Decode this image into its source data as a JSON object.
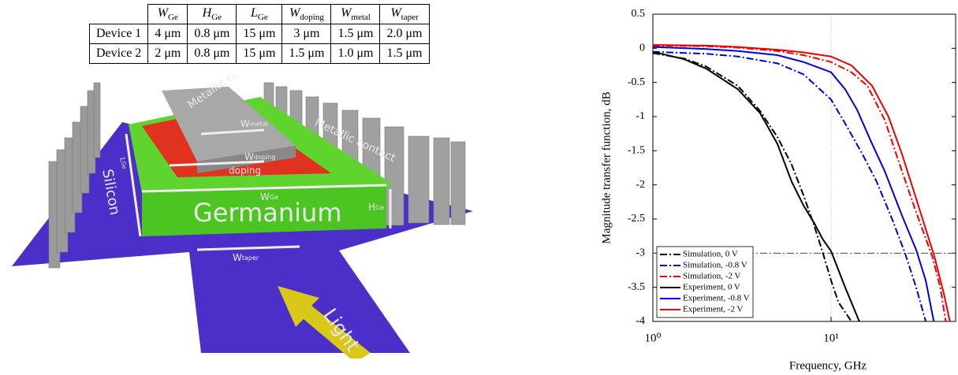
{
  "table": {
    "header": [
      {
        "main": "W",
        "sub": "Ge"
      },
      {
        "main": "H",
        "sub": "Ge"
      },
      {
        "main": "L",
        "sub": "Ge"
      },
      {
        "main": "W",
        "sub": "doping"
      },
      {
        "main": "W",
        "sub": "metal"
      },
      {
        "main": "W",
        "sub": "taper"
      }
    ],
    "rows": [
      [
        "Device 1",
        "4 μm",
        "0.8 μm",
        "15 μm",
        "3 μm",
        "1.5 μm",
        "2.0 μm"
      ],
      [
        "Device 2",
        "2 μm",
        "0.8 μm",
        "15 μm",
        "1.5 μm",
        "1.0 μm",
        "1.5 μm"
      ]
    ]
  },
  "diagram": {
    "labels": {
      "metallic_contact_top": "Metallic contact",
      "metallic_contact_right": "Metallic contact",
      "w_metal": {
        "main": "W",
        "sub": "metal"
      },
      "w_doping": {
        "main": "W",
        "sub": "doping"
      },
      "doping": "doping",
      "silicon": "Silicon",
      "l_ge": {
        "main": "L",
        "sub": "Ge"
      },
      "w_ge": {
        "main": "W",
        "sub": "Ge"
      },
      "germanium": "Germanium",
      "h_ge": {
        "main": "H",
        "sub": "Ge"
      },
      "w_taper": {
        "main": "W",
        "sub": "taper"
      },
      "light": "Light"
    }
  },
  "chart_data": {
    "type": "line",
    "xlabel": "Frequency, GHz",
    "ylabel": "Magnitude transfer function, dB",
    "xscale": "log",
    "xlim": [
      1,
      50
    ],
    "xticks": [
      {
        "value": 1,
        "label": "10⁰"
      },
      {
        "value": 10,
        "label": "10¹"
      }
    ],
    "ylim": [
      -4,
      0.5
    ],
    "yticks": [
      0.5,
      0,
      -0.5,
      -1,
      -1.5,
      -2,
      -2.5,
      -3,
      -3.5,
      -4
    ],
    "grid": true,
    "legend": "lower left",
    "reference_line": -3,
    "series": [
      {
        "name": "Simulation, 0 V",
        "color": "#000000",
        "style": "dashdot",
        "x": [
          1,
          1.5,
          2,
          3,
          4,
          5,
          6,
          7,
          8,
          9,
          10,
          11,
          13
        ],
        "values": [
          -0.07,
          -0.15,
          -0.27,
          -0.55,
          -0.92,
          -1.3,
          -1.7,
          -2.15,
          -2.58,
          -3.0,
          -3.4,
          -3.72,
          -4
        ]
      },
      {
        "name": "Simulation, -0.8 V",
        "color": "#0000dd",
        "style": "dashdot",
        "x": [
          1,
          2,
          3,
          5,
          7,
          10,
          12,
          15,
          18,
          22,
          26,
          30,
          34
        ],
        "values": [
          -0.05,
          -0.08,
          -0.12,
          -0.22,
          -0.38,
          -0.75,
          -1.1,
          -1.55,
          -1.95,
          -2.5,
          -3.0,
          -3.5,
          -4
        ]
      },
      {
        "name": "Simulation, -2 V",
        "color": "#ee0000",
        "style": "dashdot",
        "x": [
          1,
          2,
          3,
          5,
          7,
          10,
          13,
          16,
          20,
          25,
          30,
          37,
          41,
          44
        ],
        "values": [
          0.04,
          0.03,
          0.01,
          -0.04,
          -0.1,
          -0.2,
          -0.35,
          -0.55,
          -1.05,
          -1.8,
          -2.4,
          -3.05,
          -3.5,
          -4
        ]
      },
      {
        "name": "Experiment, 0 V",
        "color": "#000000",
        "style": "solid",
        "x": [
          1,
          1.5,
          2,
          3,
          4,
          5,
          6,
          7,
          8,
          9,
          10,
          12,
          14.4
        ],
        "values": [
          -0.05,
          -0.16,
          -0.3,
          -0.6,
          -0.95,
          -1.4,
          -1.95,
          -2.3,
          -2.55,
          -2.8,
          -2.97,
          -3.5,
          -4
        ]
      },
      {
        "name": "Experiment, -0.8 V",
        "color": "#0000dd",
        "style": "solid",
        "x": [
          1,
          2,
          3,
          5,
          7,
          10,
          12,
          14,
          17,
          20,
          25,
          30,
          34,
          37.7
        ],
        "values": [
          0.02,
          -0.01,
          -0.04,
          -0.1,
          -0.2,
          -0.35,
          -0.6,
          -0.9,
          -1.4,
          -1.8,
          -2.45,
          -2.95,
          -3.4,
          -4
        ]
      },
      {
        "name": "Experiment, -2 V",
        "color": "#ee0000",
        "style": "solid",
        "x": [
          1,
          2,
          3,
          5,
          7,
          10,
          13,
          17,
          21,
          25,
          30,
          38,
          43,
          46.4
        ],
        "values": [
          0.05,
          0.04,
          0.02,
          -0.02,
          -0.06,
          -0.12,
          -0.25,
          -0.55,
          -1.0,
          -1.55,
          -2.2,
          -3.05,
          -3.6,
          -4
        ]
      }
    ]
  }
}
